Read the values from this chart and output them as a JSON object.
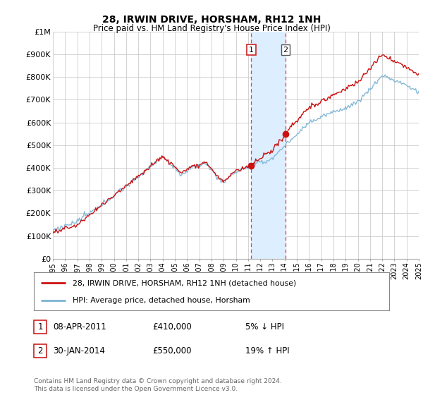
{
  "title": "28, IRWIN DRIVE, HORSHAM, RH12 1NH",
  "subtitle": "Price paid vs. HM Land Registry's House Price Index (HPI)",
  "ylim": [
    0,
    1000000
  ],
  "yticks": [
    0,
    100000,
    200000,
    300000,
    400000,
    500000,
    600000,
    700000,
    800000,
    900000,
    1000000
  ],
  "ytick_labels": [
    "£0",
    "£100K",
    "£200K",
    "£300K",
    "£400K",
    "£500K",
    "£600K",
    "£700K",
    "£800K",
    "£900K",
    "£1M"
  ],
  "hpi_color": "#7ab3d4",
  "price_color": "#cc1111",
  "highlight_color": "#ddeeff",
  "dashed_line_color": "#dd2222",
  "transaction1_date": "08-APR-2011",
  "transaction1_price": 410000,
  "transaction1_price_str": "£410,000",
  "transaction1_note": "5% ↓ HPI",
  "transaction2_date": "30-JAN-2014",
  "transaction2_price": 550000,
  "transaction2_price_str": "£550,000",
  "transaction2_note": "19% ↑ HPI",
  "legend_line1": "28, IRWIN DRIVE, HORSHAM, RH12 1NH (detached house)",
  "legend_line2": "HPI: Average price, detached house, Horsham",
  "footer": "Contains HM Land Registry data © Crown copyright and database right 2024.\nThis data is licensed under the Open Government Licence v3.0.",
  "start_year": 1995,
  "end_year": 2025,
  "background_color": "#ffffff",
  "grid_color": "#cccccc",
  "t1_year": 2011.27,
  "t2_year": 2014.08,
  "seed": 12345
}
